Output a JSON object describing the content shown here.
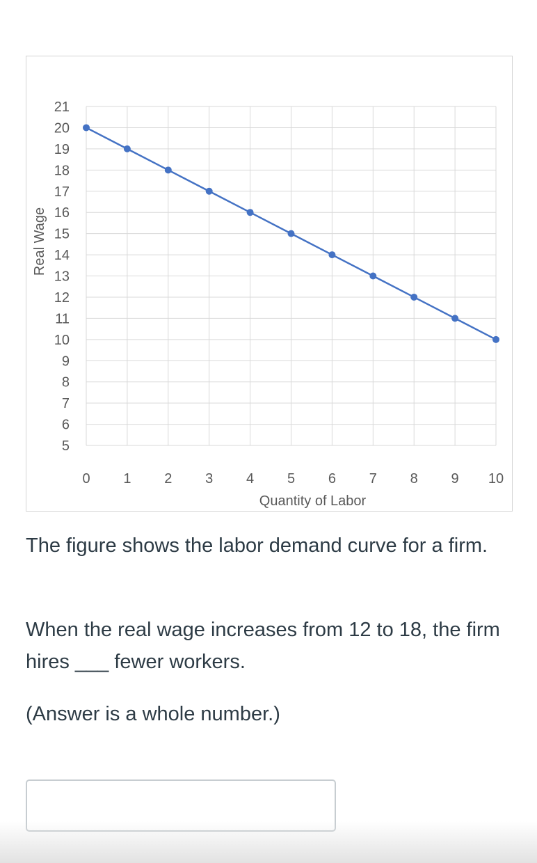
{
  "chart_data": {
    "type": "line",
    "xlabel": "Quantity of Labor",
    "ylabel": "Real Wage",
    "x": [
      0,
      1,
      2,
      3,
      4,
      5,
      6,
      7,
      8,
      9,
      10
    ],
    "series": [
      {
        "values": [
          20,
          19,
          18,
          17,
          16,
          15,
          14,
          13,
          12,
          11,
          10
        ]
      }
    ],
    "xlim": [
      0,
      10
    ],
    "ylim": [
      5,
      21
    ],
    "xticks": [
      "0",
      "1",
      "2",
      "3",
      "4",
      "5",
      "6",
      "7",
      "8",
      "9",
      "10"
    ],
    "yticks": [
      "5",
      "6",
      "7",
      "8",
      "9",
      "10",
      "11",
      "12",
      "13",
      "14",
      "15",
      "16",
      "17",
      "18",
      "19",
      "20",
      "21"
    ],
    "grid": true,
    "line_color": "#4472c4"
  },
  "question": {
    "line1": "The figure shows the labor demand curve for a firm.",
    "line2": "When the real wage increases from 12 to 18, the firm hires ___ fewer workers.",
    "line3": "(Answer is a whole number.)"
  },
  "answer": {
    "value": ""
  }
}
